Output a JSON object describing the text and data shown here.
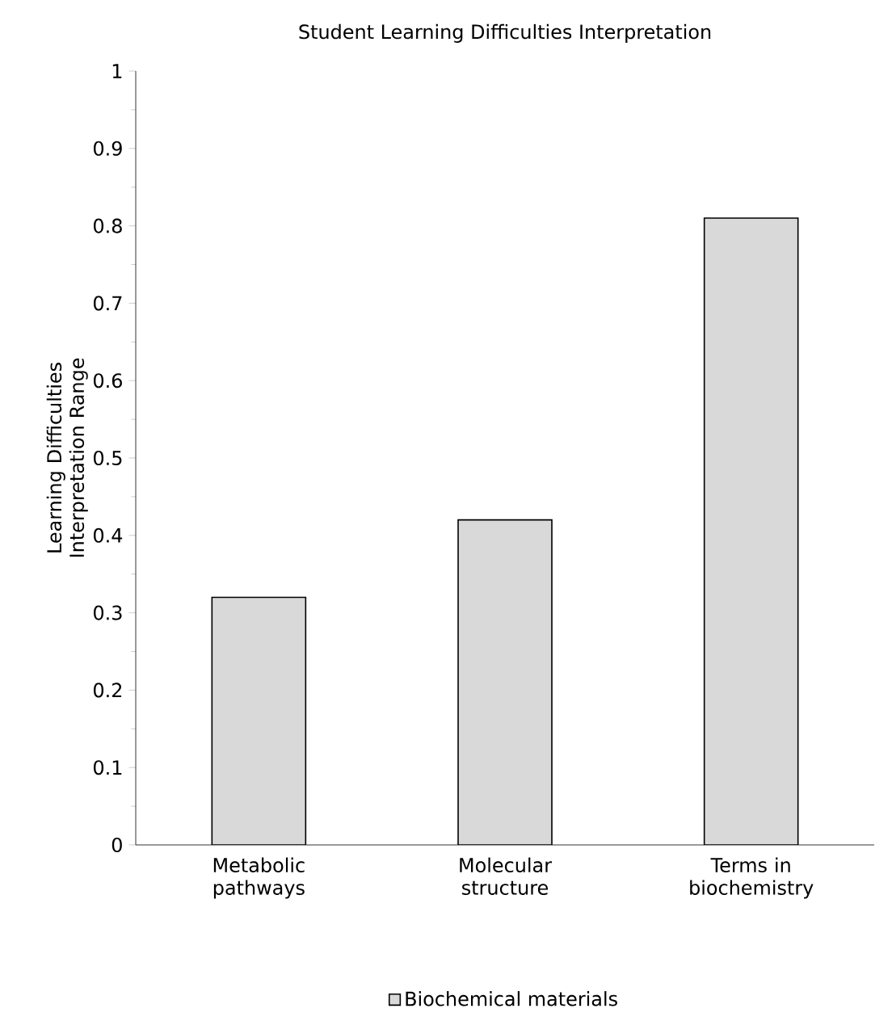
{
  "chart_data": {
    "type": "bar",
    "title": "Student Learning Difficulties Interpretation",
    "ylabel": "Learning Difficulties Interpretation Range",
    "categories": [
      "Metabolic pathways",
      "Molecular structure",
      "Terms in biochemistry"
    ],
    "series": [
      {
        "name": "Biochemical materials",
        "color": "#d9d9d9",
        "values": [
          0.32,
          0.42,
          0.81
        ]
      }
    ],
    "ylim": [
      0,
      1
    ],
    "yticks": [
      0,
      0.1,
      0.2,
      0.3,
      0.4,
      0.5,
      0.6,
      0.7,
      0.8,
      0.9,
      1
    ],
    "legend": "bottom"
  }
}
